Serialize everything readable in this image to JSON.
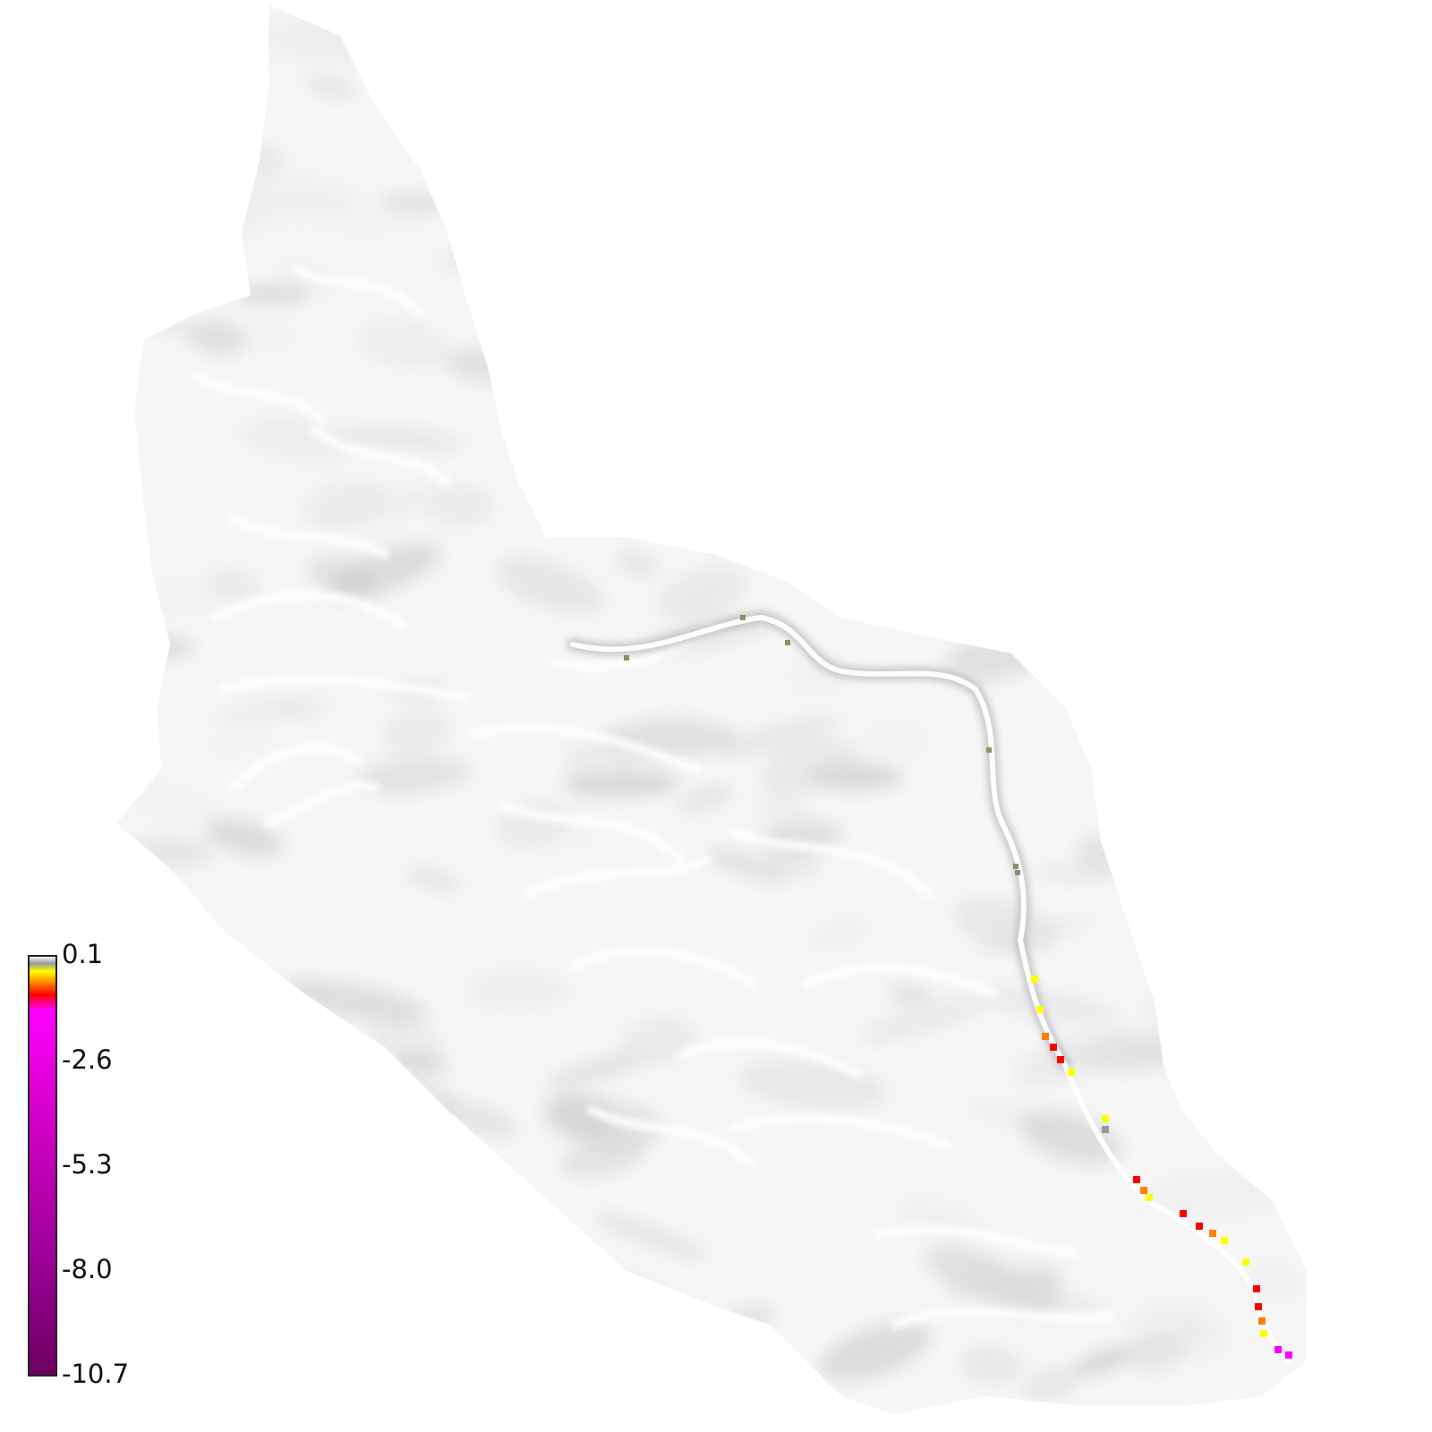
{
  "map": {
    "type": "raster-heatmap",
    "background": "#ffffff",
    "basemap": "grey hillshade relief of a basin with meandering valley channels",
    "highlighted_feature": "main river channel running along the eastern side toward the south-east outlet",
    "value_range": [
      -10.7,
      0.1
    ]
  },
  "colorbar": {
    "position": "bottom-left",
    "ticks": [
      "0.1",
      "-2.6",
      "-5.3",
      "-8.0",
      "-10.7"
    ],
    "stops": [
      {
        "value": 0.1,
        "color": "#ffffff"
      },
      {
        "value": -0.1,
        "color": "#9a9a9a"
      },
      {
        "value": -0.3,
        "color": "#ffff00"
      },
      {
        "value": -0.6,
        "color": "#ff8000"
      },
      {
        "value": -0.9,
        "color": "#ff0000"
      },
      {
        "value": -1.3,
        "color": "#ff00ff"
      },
      {
        "value": -4.0,
        "color": "#d400c8"
      },
      {
        "value": -7.5,
        "color": "#a0009a"
      },
      {
        "value": -10.7,
        "color": "#6a0060"
      }
    ]
  },
  "channel_values": [
    -0.25,
    -0.3,
    -0.7,
    -1.0,
    -0.9,
    -0.4,
    -0.2,
    -0.15,
    -0.95,
    -0.65,
    -0.35,
    -0.9,
    -0.8,
    -0.5,
    -0.2,
    -0.3,
    -1.0,
    -0.9,
    -0.6,
    -0.35,
    -2.4,
    -2.1
  ]
}
